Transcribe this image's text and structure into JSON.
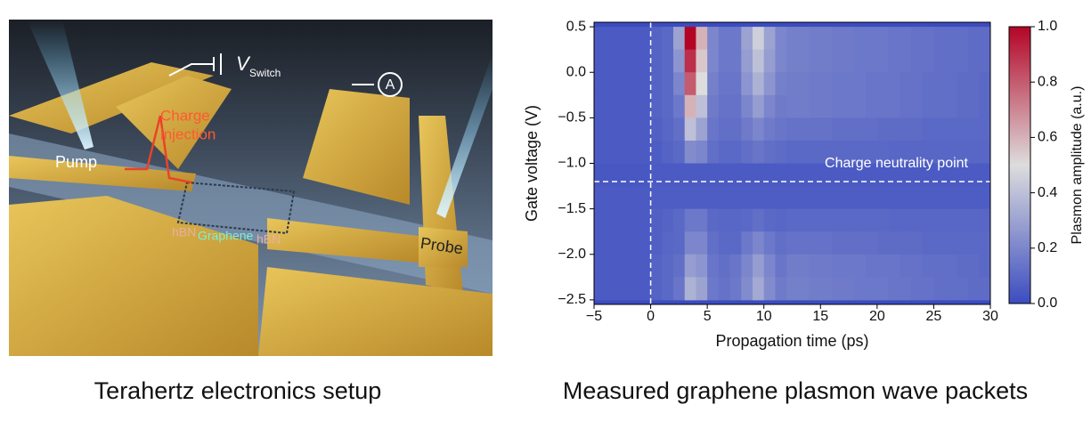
{
  "illustration": {
    "labels": {
      "v": "V",
      "v_sub": "Switch",
      "ammeter": "A",
      "charge": [
        "Charge",
        "injection"
      ],
      "pump": "Pump",
      "probe": "Probe",
      "hbn1": "hBN",
      "graphene": "Graphene",
      "hbn2": "hBN"
    },
    "caption": "Terahertz electronics setup"
  },
  "chart_data": {
    "type": "heatmap",
    "caption": "Measured graphene plasmon wave packets",
    "xlabel": "Propagation time (ps)",
    "ylabel": "Gate voltage (V)",
    "colorbar_label": "Plasmon amplitude (a.u.)",
    "xlim": [
      -5,
      30
    ],
    "ylim": [
      -2.55,
      0.55
    ],
    "xticks": [
      {
        "value": -5,
        "label": "−5"
      },
      0,
      5,
      10,
      15,
      20,
      25,
      30
    ],
    "yticks": [
      0.5,
      {
        "value": 0,
        "label": "0.0"
      },
      {
        "value": -0.5,
        "label": "−0.5"
      },
      {
        "value": -1,
        "label": "−1.0"
      },
      {
        "value": -1.5,
        "label": "−1.5"
      },
      {
        "value": -2,
        "label": "−2.0"
      },
      {
        "value": -2.5,
        "label": "−2.5"
      }
    ],
    "zlim": [
      0,
      1
    ],
    "zticks": [
      {
        "value": 0,
        "label": "0.0"
      },
      0.2,
      0.4,
      0.6,
      0.8,
      {
        "value": 1,
        "label": "1.0"
      }
    ],
    "colormap": [
      "#3b4cc0",
      "#dddddd",
      "#b40426"
    ],
    "vline": 0,
    "hline": -1.2,
    "annotation": "Charge neutrality point",
    "x_edges": [
      -5,
      -4,
      -3,
      -2,
      -1,
      0,
      1,
      2,
      3,
      4,
      5,
      6,
      7,
      8,
      9,
      10,
      11,
      12,
      13,
      14,
      15,
      16,
      17,
      18,
      19,
      20,
      21,
      22,
      23,
      24,
      25,
      26,
      27,
      28,
      29,
      30
    ],
    "y_edges": [
      0.5,
      0.25,
      0,
      -0.25,
      -0.5,
      -0.75,
      -1,
      -1.25,
      -1.5,
      -1.75,
      -2,
      -2.25,
      -2.5
    ],
    "z": [
      [
        0.05,
        0.05,
        0.05,
        0.05,
        0.05,
        0.08,
        0.1,
        0.3,
        1.0,
        0.6,
        0.2,
        0.15,
        0.15,
        0.3,
        0.45,
        0.3,
        0.2,
        0.18,
        0.18,
        0.17,
        0.17,
        0.16,
        0.16,
        0.15,
        0.15,
        0.15,
        0.14,
        0.14,
        0.13,
        0.13,
        0.12,
        0.12,
        0.12,
        0.11,
        0.11
      ],
      [
        0.05,
        0.05,
        0.05,
        0.05,
        0.05,
        0.08,
        0.1,
        0.25,
        0.9,
        0.55,
        0.2,
        0.15,
        0.15,
        0.28,
        0.4,
        0.28,
        0.2,
        0.18,
        0.18,
        0.17,
        0.17,
        0.16,
        0.16,
        0.15,
        0.15,
        0.15,
        0.14,
        0.14,
        0.13,
        0.13,
        0.12,
        0.12,
        0.12,
        0.11,
        0.11
      ],
      [
        0.05,
        0.05,
        0.05,
        0.05,
        0.05,
        0.08,
        0.1,
        0.2,
        0.8,
        0.5,
        0.18,
        0.14,
        0.14,
        0.25,
        0.35,
        0.25,
        0.18,
        0.17,
        0.17,
        0.16,
        0.16,
        0.15,
        0.15,
        0.15,
        0.14,
        0.14,
        0.14,
        0.13,
        0.13,
        0.12,
        0.12,
        0.12,
        0.11,
        0.11,
        0.1
      ],
      [
        0.05,
        0.05,
        0.05,
        0.05,
        0.05,
        0.08,
        0.1,
        0.15,
        0.6,
        0.4,
        0.16,
        0.13,
        0.13,
        0.2,
        0.28,
        0.2,
        0.16,
        0.17,
        0.17,
        0.16,
        0.16,
        0.15,
        0.15,
        0.15,
        0.14,
        0.14,
        0.14,
        0.13,
        0.13,
        0.12,
        0.12,
        0.12,
        0.11,
        0.11,
        0.1
      ],
      [
        0.05,
        0.05,
        0.05,
        0.05,
        0.05,
        0.07,
        0.09,
        0.12,
        0.4,
        0.3,
        0.14,
        0.12,
        0.12,
        0.16,
        0.2,
        0.16,
        0.14,
        0.13,
        0.13,
        0.13,
        0.13,
        0.12,
        0.12,
        0.12,
        0.12,
        0.11,
        0.11,
        0.11,
        0.11,
        0.1,
        0.1,
        0.1,
        0.1,
        0.1,
        0.1
      ],
      [
        0.05,
        0.05,
        0.05,
        0.05,
        0.05,
        0.06,
        0.08,
        0.1,
        0.22,
        0.2,
        0.12,
        0.1,
        0.1,
        0.12,
        0.14,
        0.12,
        0.11,
        0.1,
        0.1,
        0.1,
        0.1,
        0.1,
        0.1,
        0.1,
        0.1,
        0.1,
        0.09,
        0.09,
        0.09,
        0.09,
        0.09,
        0.09,
        0.09,
        0.09,
        0.09
      ],
      [
        0.04,
        0.04,
        0.04,
        0.04,
        0.04,
        0.05,
        0.05,
        0.05,
        0.05,
        0.05,
        0.05,
        0.05,
        0.05,
        0.05,
        0.05,
        0.05,
        0.05,
        0.05,
        0.05,
        0.05,
        0.05,
        0.05,
        0.05,
        0.05,
        0.05,
        0.05,
        0.05,
        0.05,
        0.05,
        0.05,
        0.05,
        0.05,
        0.05,
        0.05,
        0.05
      ],
      [
        0.05,
        0.05,
        0.05,
        0.05,
        0.05,
        0.06,
        0.06,
        0.06,
        0.06,
        0.06,
        0.06,
        0.06,
        0.06,
        0.06,
        0.06,
        0.06,
        0.06,
        0.06,
        0.06,
        0.06,
        0.06,
        0.06,
        0.06,
        0.06,
        0.06,
        0.06,
        0.06,
        0.06,
        0.06,
        0.06,
        0.06,
        0.06,
        0.06,
        0.06,
        0.06
      ],
      [
        0.05,
        0.05,
        0.05,
        0.05,
        0.05,
        0.07,
        0.08,
        0.1,
        0.15,
        0.15,
        0.1,
        0.09,
        0.09,
        0.1,
        0.12,
        0.1,
        0.09,
        0.1,
        0.1,
        0.1,
        0.1,
        0.1,
        0.1,
        0.1,
        0.1,
        0.1,
        0.09,
        0.09,
        0.09,
        0.09,
        0.09,
        0.09,
        0.09,
        0.09,
        0.09
      ],
      [
        0.05,
        0.05,
        0.05,
        0.05,
        0.05,
        0.07,
        0.09,
        0.1,
        0.2,
        0.2,
        0.12,
        0.1,
        0.1,
        0.15,
        0.2,
        0.15,
        0.12,
        0.13,
        0.13,
        0.13,
        0.13,
        0.12,
        0.12,
        0.12,
        0.12,
        0.11,
        0.11,
        0.11,
        0.11,
        0.1,
        0.1,
        0.1,
        0.1,
        0.1,
        0.1
      ],
      [
        0.05,
        0.05,
        0.05,
        0.05,
        0.05,
        0.08,
        0.1,
        0.12,
        0.28,
        0.25,
        0.14,
        0.12,
        0.14,
        0.2,
        0.28,
        0.2,
        0.14,
        0.17,
        0.17,
        0.16,
        0.16,
        0.15,
        0.15,
        0.15,
        0.14,
        0.14,
        0.14,
        0.13,
        0.13,
        0.12,
        0.12,
        0.12,
        0.11,
        0.11,
        0.1
      ],
      [
        0.05,
        0.05,
        0.05,
        0.05,
        0.05,
        0.08,
        0.1,
        0.14,
        0.35,
        0.3,
        0.15,
        0.13,
        0.15,
        0.22,
        0.32,
        0.22,
        0.16,
        0.18,
        0.18,
        0.17,
        0.17,
        0.16,
        0.16,
        0.15,
        0.15,
        0.15,
        0.14,
        0.14,
        0.13,
        0.13,
        0.12,
        0.12,
        0.12,
        0.11,
        0.11
      ]
    ]
  }
}
